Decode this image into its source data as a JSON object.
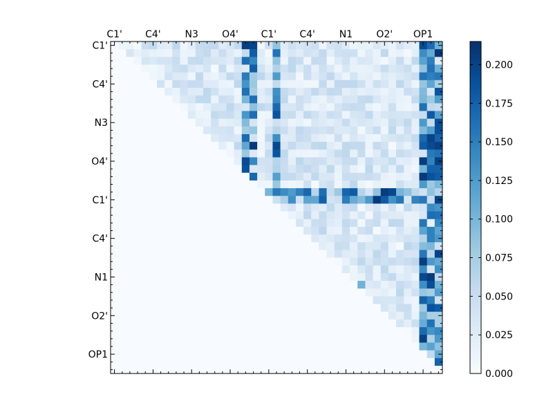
{
  "chart_data": {
    "type": "heatmap",
    "title": "",
    "xlabel": "",
    "ylabel": "",
    "n": 43,
    "x_tick_labels": [
      "C1'",
      "C4'",
      "N3",
      "O4'",
      "C1'",
      "C4'",
      "N1",
      "O2'",
      "OP1"
    ],
    "y_tick_labels": [
      "C1'",
      "C4'",
      "N3",
      "O4'",
      "C1'",
      "C4'",
      "N1",
      "O2'",
      "OP1"
    ],
    "tick_index_spacing": 5,
    "colormap": "Blues",
    "vmin": 0.0,
    "vmax": 0.215,
    "colorbar_ticks": [
      "0.000",
      "0.025",
      "0.050",
      "0.075",
      "0.100",
      "0.125",
      "0.150",
      "0.175",
      "0.200"
    ],
    "colorbar_tick_values": [
      0,
      0.025,
      0.05,
      0.075,
      0.1,
      0.125,
      0.15,
      0.175,
      0.2
    ],
    "lower_triangle_value": 0.0,
    "strong_columns": [
      17,
      18,
      21,
      40,
      41,
      42
    ],
    "strong_rows": [
      19,
      20
    ],
    "note_values": "upper-triangle cell values estimated from color intensity"
  }
}
